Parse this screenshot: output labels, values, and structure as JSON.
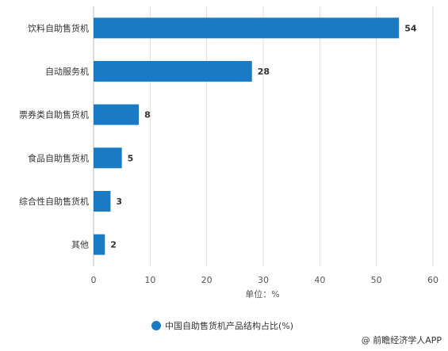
{
  "chart_data": {
    "type": "bar",
    "orientation": "horizontal",
    "categories": [
      "饮料自助售货机",
      "自动服务机",
      "票券类自助售货机",
      "食品自助售货机",
      "综合性自助售货机",
      "其他"
    ],
    "series": [
      {
        "name": "中国自助售货机产品结构占比(%)",
        "values": [
          54,
          28,
          8,
          5,
          3,
          2
        ]
      }
    ],
    "xlabel": "单位：%",
    "xlim": [
      0,
      60
    ],
    "xticks": [
      0,
      10,
      20,
      30,
      40,
      50,
      60
    ],
    "grid": "vertical",
    "legend_position": "bottom",
    "bar_color": "#1a7ac4"
  },
  "credit": {
    "symbol": "@",
    "text": "前瞻经济学人APP"
  }
}
